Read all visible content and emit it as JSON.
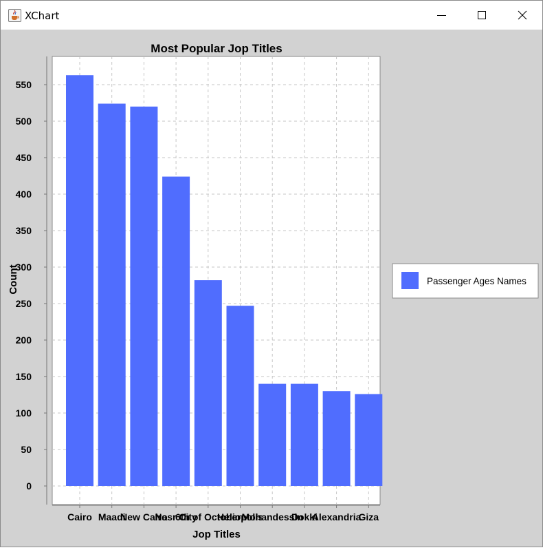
{
  "window": {
    "title": "XChart",
    "icon": "java-cup-icon",
    "buttons": [
      "minimize-icon",
      "maximize-icon",
      "close-icon"
    ]
  },
  "chart_data": {
    "type": "bar",
    "title": "Most Popular Jop Titles",
    "xlabel": "Jop Titles",
    "ylabel": "Count",
    "categories": [
      "Cairo",
      "Maadi",
      "New Cairo",
      "Nasr City",
      "6th of October",
      "Heliopolis",
      "Mohandessin",
      "Dokki",
      "Alexandria",
      "Giza"
    ],
    "series": [
      {
        "name": "Passenger Ages Names",
        "color": "#506dfe",
        "values": [
          563,
          524,
          520,
          424,
          282,
          247,
          140,
          140,
          130,
          126
        ]
      }
    ],
    "ylim": [
      0,
      550
    ],
    "yticks": [
      0,
      50,
      100,
      150,
      200,
      250,
      300,
      350,
      400,
      450,
      500,
      550
    ],
    "grid": true,
    "legend_position": "outside-right"
  }
}
